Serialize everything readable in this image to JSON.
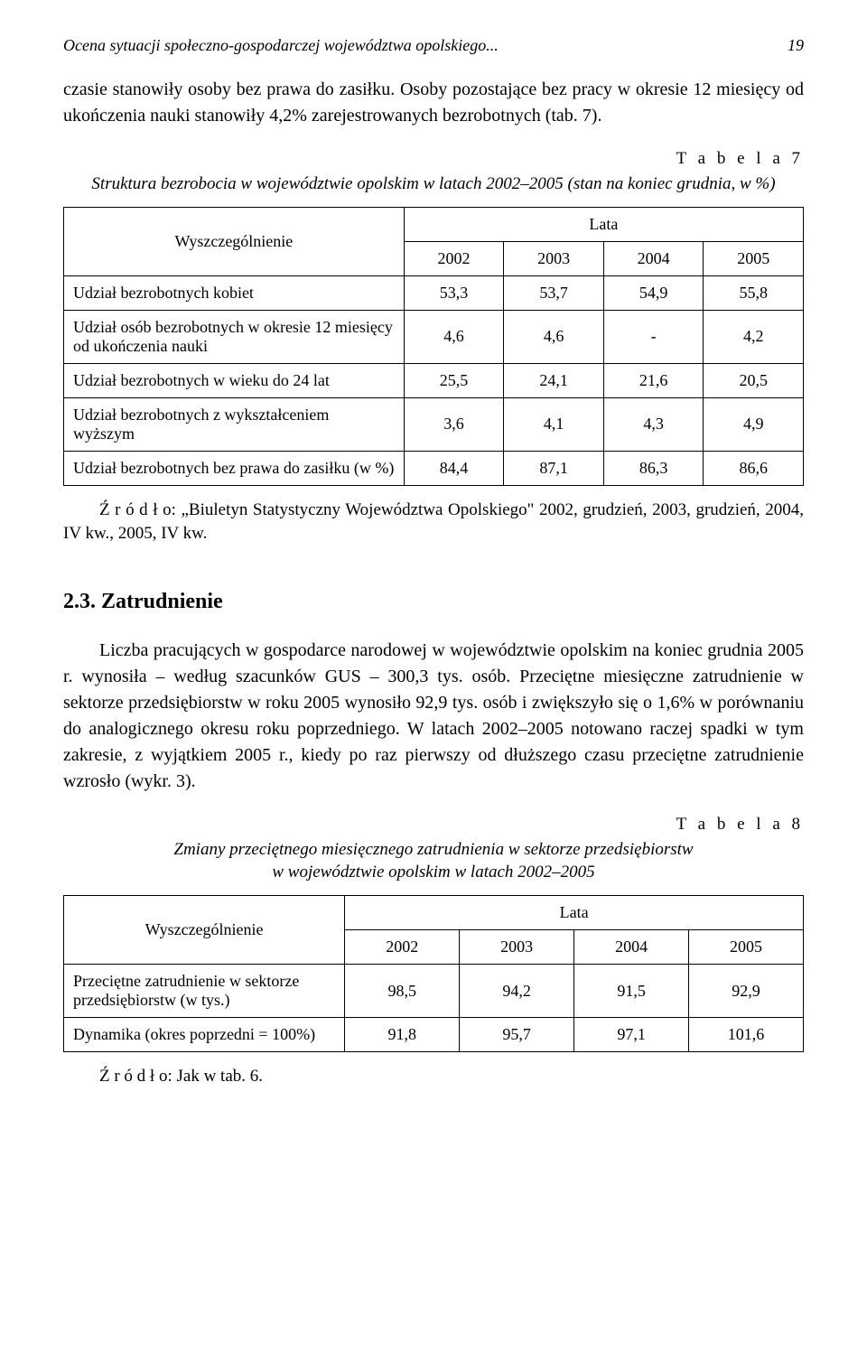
{
  "header": {
    "title": "Ocena sytuacji społeczno-gospodarczej województwa opolskiego...",
    "page_number": "19"
  },
  "paragraphs": {
    "p1": "czasie stanowiły osoby bez prawa do zasiłku. Osoby pozostające bez pracy w okresie 12 miesięcy od ukończenia nauki stanowiły 4,2% zarejestrowanych bezrobotnych (tab. 7).",
    "p2": "Liczba pracujących w gospodarce narodowej w województwie opolskim na koniec grudnia 2005 r. wynosiła – według szacunków GUS – 300,3 tys. osób. Przeciętne miesięczne zatrudnienie w sektorze przedsiębiorstw w roku 2005 wynosiło 92,9 tys. osób i zwiększyło się o 1,6% w porównaniu do analogicznego okresu roku poprzedniego. W latach 2002–2005 notowano raczej spadki w tym zakresie, z wyjątkiem 2005 r., kiedy po raz pierwszy od dłuższego czasu  przeciętne zatrudnienie wzrosło (wykr. 3)."
  },
  "section": {
    "heading": "2.3. Zatrudnienie"
  },
  "table7": {
    "label": "T a b e l a  7",
    "caption": "Struktura bezrobocia w województwie opolskim w latach 2002–2005 (stan na koniec grudnia, w %)",
    "col_header": "Wyszczególnienie",
    "years_header": "Lata",
    "years": [
      "2002",
      "2003",
      "2004",
      "2005"
    ],
    "col_widths": [
      "46%",
      "13.5%",
      "13.5%",
      "13.5%",
      "13.5%"
    ],
    "rows": [
      {
        "label": "Udział bezrobotnych kobiet",
        "values": [
          "53,3",
          "53,7",
          "54,9",
          "55,8"
        ]
      },
      {
        "label": "Udział osób bezrobotnych w okresie 12 miesięcy od ukończenia nauki",
        "values": [
          "4,6",
          "4,6",
          "-",
          "4,2"
        ]
      },
      {
        "label": "Udział bezrobotnych w wieku do 24 lat",
        "values": [
          "25,5",
          "24,1",
          "21,6",
          "20,5"
        ]
      },
      {
        "label": "Udział bezrobotnych z wykształceniem wyższym",
        "values": [
          "3,6",
          "4,1",
          "4,3",
          "4,9"
        ]
      },
      {
        "label": "Udział bezrobotnych bez prawa do zasiłku (w %)",
        "values": [
          "84,4",
          "87,1",
          "86,3",
          "86,6"
        ]
      }
    ],
    "source": "Ź r ó d ł o: „Biuletyn Statystyczny Województwa Opolskiego\" 2002, grudzień, 2003, grudzień, 2004, IV kw., 2005, IV kw."
  },
  "table8": {
    "label": "T a b e l a  8",
    "caption_l1": "Zmiany przeciętnego miesięcznego zatrudnienia w sektorze przedsiębiorstw",
    "caption_l2": "w województwie opolskim w latach 2002–2005",
    "col_header": "Wyszczególnienie",
    "years_header": "Lata",
    "years": [
      "2002",
      "2003",
      "2004",
      "2005"
    ],
    "col_widths": [
      "38%",
      "15.5%",
      "15.5%",
      "15.5%",
      "15.5%"
    ],
    "rows": [
      {
        "label": "Przeciętne zatrudnienie w sektorze przedsiębiorstw (w tys.)",
        "values": [
          "98,5",
          "94,2",
          "91,5",
          "92,9"
        ]
      },
      {
        "label": "Dynamika (okres poprzedni = 100%)",
        "values": [
          "91,8",
          "95,7",
          "97,1",
          "101,6"
        ]
      }
    ],
    "source": "Ź r ó d ł o: Jak w tab. 6."
  }
}
